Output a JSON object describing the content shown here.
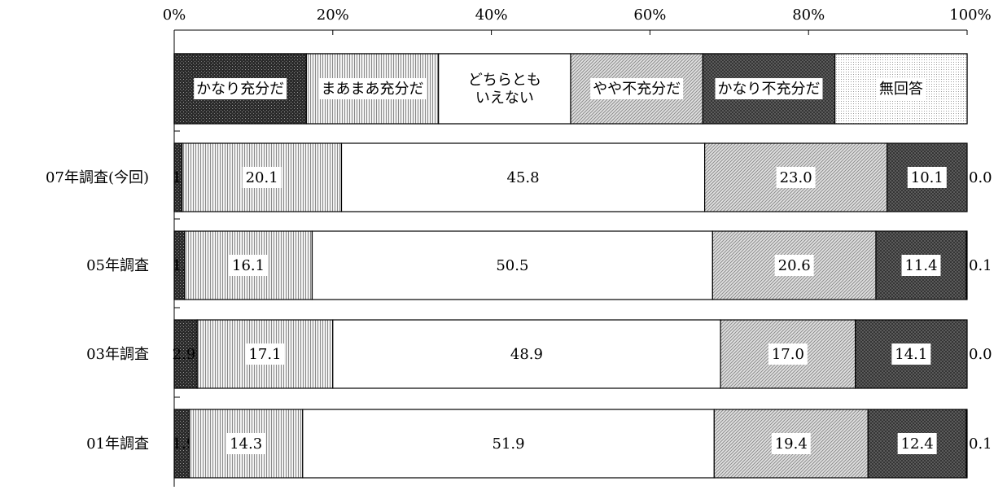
{
  "chart_data": {
    "type": "bar",
    "orientation": "horizontal",
    "stacked": "percent",
    "xlim": [
      0,
      100
    ],
    "x_ticks": [
      "0%",
      "20%",
      "40%",
      "60%",
      "80%",
      "100%"
    ],
    "legend_placement": "top",
    "grid": false,
    "categories": [
      "07年調査(今回)",
      "05年調査",
      "03年調査",
      "01年調査"
    ],
    "series": [
      {
        "name": "かなり充分だ",
        "values": [
          1.0,
          1.3,
          2.9,
          1.9
        ],
        "value_labels": [
          "1.0",
          "1.3",
          "2.9",
          "1.9"
        ],
        "pattern": "dark-dots"
      },
      {
        "name": "まあまあ充分だ",
        "values": [
          20.1,
          16.1,
          17.1,
          14.3
        ],
        "value_labels": [
          "20.1",
          "16.1",
          "17.1",
          "14.3"
        ],
        "pattern": "vertical-lines"
      },
      {
        "name": "どちらとも\nいえない",
        "values": [
          45.8,
          50.5,
          48.9,
          51.9
        ],
        "value_labels": [
          "45.8",
          "50.5",
          "48.9",
          "51.9"
        ],
        "pattern": "white"
      },
      {
        "name": "やや不充分だ",
        "values": [
          23.0,
          20.6,
          17.0,
          19.4
        ],
        "value_labels": [
          "23.0",
          "20.6",
          "17.0",
          "19.4"
        ],
        "pattern": "diagonal-lines"
      },
      {
        "name": "かなり不充分だ",
        "values": [
          10.1,
          11.4,
          14.1,
          12.4
        ],
        "value_labels": [
          "10.1",
          "11.4",
          "14.1",
          "12.4"
        ],
        "pattern": "dark-cross"
      },
      {
        "name": "無回答",
        "values": [
          0.0,
          0.1,
          0.0,
          0.1
        ],
        "value_labels": [
          "0.0",
          "0.1",
          "0.0",
          "0.1"
        ],
        "pattern": "light-dots"
      }
    ]
  }
}
